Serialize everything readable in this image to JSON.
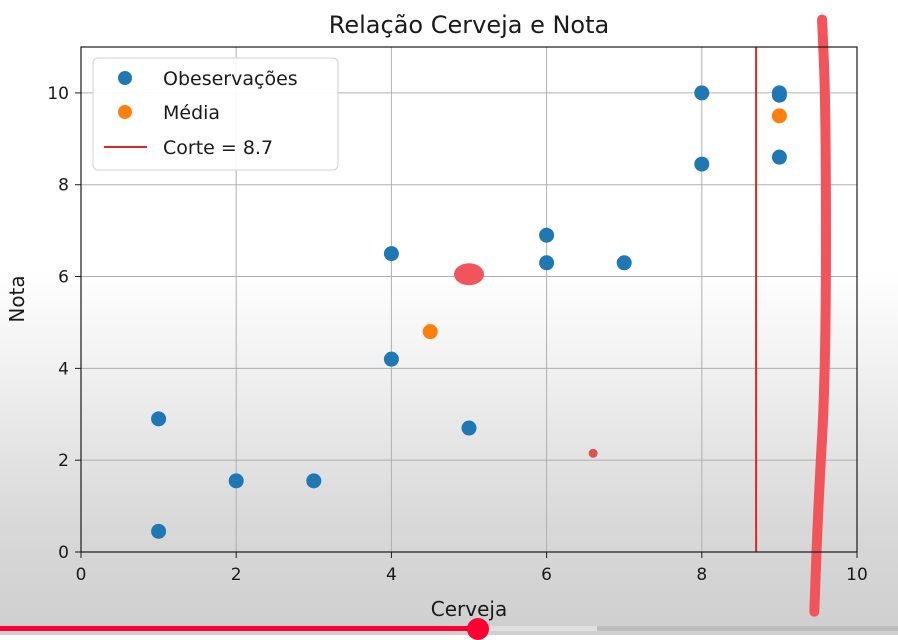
{
  "chart_data": {
    "type": "scatter",
    "title": "Relação Cerveja e Nota",
    "xlabel": "Cerveja",
    "ylabel": "Nota",
    "xlim": [
      0,
      10
    ],
    "ylim": [
      0,
      11
    ],
    "xticks": [
      0,
      2,
      4,
      6,
      8,
      10
    ],
    "yticks": [
      0,
      2,
      4,
      6,
      8,
      10
    ],
    "grid": true,
    "legend_position": "top-left",
    "series": [
      {
        "name": "Obeservações",
        "kind": "points",
        "color": "#1f77b4",
        "points": [
          {
            "x": 1,
            "y": 0.45
          },
          {
            "x": 1,
            "y": 2.9
          },
          {
            "x": 2,
            "y": 1.55
          },
          {
            "x": 3,
            "y": 1.55
          },
          {
            "x": 4,
            "y": 4.2
          },
          {
            "x": 4,
            "y": 6.5
          },
          {
            "x": 5,
            "y": 2.7
          },
          {
            "x": 6,
            "y": 6.3
          },
          {
            "x": 6,
            "y": 6.9
          },
          {
            "x": 7,
            "y": 6.3
          },
          {
            "x": 8,
            "y": 8.45
          },
          {
            "x": 8,
            "y": 10.0
          },
          {
            "x": 9,
            "y": 8.6
          },
          {
            "x": 9,
            "y": 9.95
          },
          {
            "x": 9,
            "y": 10.0
          }
        ]
      },
      {
        "name": "Média",
        "kind": "points",
        "color": "#ff7f0e",
        "points": [
          {
            "x": 4.5,
            "y": 4.8
          },
          {
            "x": 9,
            "y": 9.5
          }
        ]
      },
      {
        "name": "Corte = 8.7",
        "kind": "vline",
        "color": "#d62728",
        "x": 8.7
      }
    ],
    "annotations": [
      {
        "kind": "dot",
        "color": "#f2545b",
        "x": 5.0,
        "y": 6.05,
        "size": "large"
      },
      {
        "kind": "dot",
        "color": "#d9534f",
        "x": 6.6,
        "y": 2.15,
        "size": "small"
      },
      {
        "kind": "stroke",
        "color": "#f2545b",
        "points": [
          [
            9.55,
            11.6
          ],
          [
            9.6,
            9.6
          ],
          [
            9.6,
            4.0
          ],
          [
            9.5,
            1.0
          ],
          [
            9.45,
            -1.3
          ]
        ]
      }
    ]
  },
  "player": {
    "progress": 0.532,
    "buffered": 0.665,
    "fill_color": "#ff0033"
  }
}
